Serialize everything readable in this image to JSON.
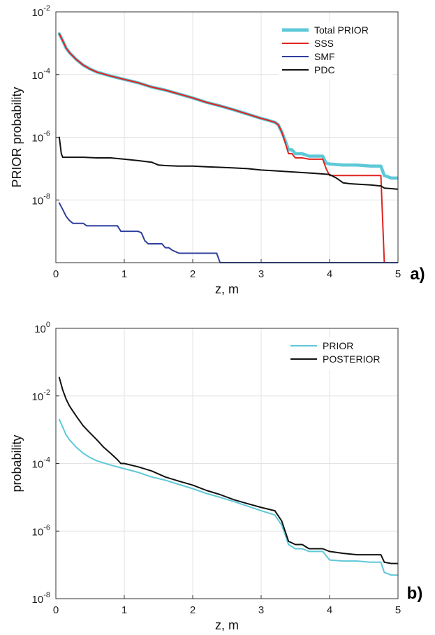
{
  "chart_data": [
    {
      "type": "line",
      "panel_label": "a)",
      "xlabel": "z, m",
      "ylabel": "PRIOR probability",
      "xlim": [
        0,
        5
      ],
      "ylim": [
        1e-10,
        0.01
      ],
      "y_scale": "log",
      "x_ticks": [
        "0",
        "1",
        "2",
        "3",
        "4",
        "5"
      ],
      "y_ticks": [
        {
          "value": 0.01,
          "base": "10",
          "exp": "-2"
        },
        {
          "value": 0.0001,
          "base": "10",
          "exp": "-4"
        },
        {
          "value": 1e-06,
          "base": "10",
          "exp": "-6"
        },
        {
          "value": 1e-08,
          "base": "10",
          "exp": "-8"
        }
      ],
      "grid": true,
      "legend_position": "top-right",
      "series": [
        {
          "name": "Total PRIOR",
          "color": "#5ec8d8",
          "style": "thick",
          "x": [
            0.05,
            0.1,
            0.15,
            0.2,
            0.3,
            0.4,
            0.5,
            0.6,
            0.8,
            1.0,
            1.2,
            1.4,
            1.6,
            1.8,
            2.0,
            2.2,
            2.4,
            2.6,
            2.8,
            3.0,
            3.1,
            3.2,
            3.25,
            3.3,
            3.35,
            3.4,
            3.45,
            3.5,
            3.6,
            3.7,
            3.8,
            3.9,
            3.95,
            4.0,
            4.2,
            4.4,
            4.6,
            4.75,
            4.8,
            4.85,
            4.9,
            5.0
          ],
          "y": [
            0.002,
            0.0012,
            0.0007,
            0.0005,
            0.0003,
            0.0002,
            0.00015,
            0.00012,
            9e-05,
            7e-05,
            5.5e-05,
            4e-05,
            3.2e-05,
            2.4e-05,
            1.8e-05,
            1.3e-05,
            1e-05,
            7.5e-06,
            5.5e-06,
            4e-06,
            3.5e-06,
            3e-06,
            2.5e-06,
            1.5e-06,
            8e-07,
            4e-07,
            4e-07,
            3e-07,
            3e-07,
            2.5e-07,
            2.5e-07,
            2.5e-07,
            1.5e-07,
            1.4e-07,
            1.3e-07,
            1.3e-07,
            1.2e-07,
            1.2e-07,
            6e-08,
            5.5e-08,
            5e-08,
            5e-08
          ]
        },
        {
          "name": "SSS",
          "color": "#e0231e",
          "style": "normal",
          "x": [
            0.05,
            0.1,
            0.15,
            0.2,
            0.3,
            0.4,
            0.5,
            0.6,
            0.8,
            1.0,
            1.2,
            1.4,
            1.6,
            1.8,
            2.0,
            2.2,
            2.4,
            2.6,
            2.8,
            3.0,
            3.1,
            3.2,
            3.25,
            3.3,
            3.35,
            3.4,
            3.45,
            3.5,
            3.6,
            3.7,
            3.8,
            3.9,
            3.95,
            4.0,
            4.2,
            4.4,
            4.6,
            4.75,
            4.8
          ],
          "y": [
            0.002,
            0.0012,
            0.0007,
            0.0005,
            0.0003,
            0.0002,
            0.00015,
            0.00012,
            9e-05,
            7e-05,
            5.5e-05,
            4e-05,
            3.2e-05,
            2.4e-05,
            1.8e-05,
            1.3e-05,
            1e-05,
            7.5e-06,
            5.5e-06,
            4e-06,
            3.5e-06,
            3e-06,
            2.5e-06,
            1.5e-06,
            7e-07,
            3e-07,
            3e-07,
            2.2e-07,
            2.2e-07,
            2e-07,
            2e-07,
            2e-07,
            1e-07,
            6e-08,
            6e-08,
            6e-08,
            6e-08,
            6e-08,
            1e-10
          ]
        },
        {
          "name": "SMF",
          "color": "#2f3f9e",
          "style": "normal",
          "x": [
            0.05,
            0.1,
            0.15,
            0.2,
            0.25,
            0.3,
            0.4,
            0.45,
            0.5,
            0.9,
            0.95,
            1.2,
            1.25,
            1.3,
            1.35,
            1.55,
            1.6,
            1.65,
            1.7,
            1.8,
            2.0,
            2.35,
            2.4,
            2.6,
            2.8,
            3.0,
            5.0
          ],
          "y": [
            8e-09,
            5e-09,
            3e-09,
            2.2e-09,
            1.8e-09,
            1.8e-09,
            1.8e-09,
            1.5e-09,
            1.5e-09,
            1.5e-09,
            1e-09,
            1e-09,
            9e-10,
            5e-10,
            4e-10,
            4e-10,
            3e-10,
            3e-10,
            2.5e-10,
            2e-10,
            2e-10,
            2e-10,
            1e-10,
            1e-10,
            1e-10,
            1e-10,
            1e-10
          ]
        },
        {
          "name": "PDC",
          "color": "#111111",
          "style": "normal",
          "x": [
            0.05,
            0.08,
            0.1,
            0.2,
            0.4,
            0.6,
            0.8,
            1.0,
            1.2,
            1.4,
            1.5,
            1.6,
            1.8,
            2.0,
            2.2,
            2.4,
            2.6,
            2.8,
            3.0,
            3.2,
            3.4,
            3.6,
            3.8,
            4.0,
            4.1,
            4.2,
            4.3,
            4.4,
            4.6,
            4.75,
            4.8,
            4.9,
            5.0
          ],
          "y": [
            1e-06,
            3e-07,
            2.3e-07,
            2.3e-07,
            2.3e-07,
            2.2e-07,
            2.2e-07,
            2e-07,
            1.8e-07,
            1.6e-07,
            1.3e-07,
            1.25e-07,
            1.2e-07,
            1.2e-07,
            1.15e-07,
            1.1e-07,
            1.05e-07,
            1e-07,
            9e-08,
            8.5e-08,
            8e-08,
            7.5e-08,
            7e-08,
            6.5e-08,
            5e-08,
            3.5e-08,
            3.3e-08,
            3.2e-08,
            3e-08,
            2.8e-08,
            2.4e-08,
            2.3e-08,
            2.2e-08
          ]
        }
      ]
    },
    {
      "type": "line",
      "panel_label": "b)",
      "xlabel": "z, m",
      "ylabel": "probability",
      "xlim": [
        0,
        5
      ],
      "ylim": [
        1e-08,
        1
      ],
      "y_scale": "log",
      "x_ticks": [
        "0",
        "1",
        "2",
        "3",
        "4",
        "5"
      ],
      "y_ticks": [
        {
          "value": 1,
          "base": "10",
          "exp": "0"
        },
        {
          "value": 0.01,
          "base": "10",
          "exp": "-2"
        },
        {
          "value": 0.0001,
          "base": "10",
          "exp": "-4"
        },
        {
          "value": 1e-06,
          "base": "10",
          "exp": "-6"
        },
        {
          "value": 1e-08,
          "base": "10",
          "exp": "-8"
        }
      ],
      "grid": true,
      "legend_position": "top-right",
      "series": [
        {
          "name": "PRIOR",
          "color": "#5ec8d8",
          "style": "normal",
          "x": [
            0.05,
            0.1,
            0.15,
            0.2,
            0.3,
            0.4,
            0.5,
            0.6,
            0.8,
            1.0,
            1.2,
            1.4,
            1.6,
            1.8,
            2.0,
            2.2,
            2.4,
            2.6,
            2.8,
            3.0,
            3.2,
            3.3,
            3.35,
            3.4,
            3.5,
            3.6,
            3.7,
            3.9,
            4.0,
            4.2,
            4.4,
            4.6,
            4.75,
            4.8,
            4.9,
            5.0
          ],
          "y": [
            0.002,
            0.0012,
            0.0007,
            0.0005,
            0.0003,
            0.0002,
            0.00015,
            0.00012,
            9e-05,
            7e-05,
            5.5e-05,
            4e-05,
            3.2e-05,
            2.4e-05,
            1.8e-05,
            1.3e-05,
            1e-05,
            7.5e-06,
            5.5e-06,
            4e-06,
            3e-06,
            1.5e-06,
            8e-07,
            4e-07,
            3e-07,
            3e-07,
            2.5e-07,
            2.5e-07,
            1.4e-07,
            1.3e-07,
            1.3e-07,
            1.2e-07,
            1.2e-07,
            6e-08,
            5e-08,
            5e-08
          ]
        },
        {
          "name": "POSTERIOR",
          "color": "#111111",
          "style": "normal",
          "x": [
            0.05,
            0.1,
            0.15,
            0.2,
            0.3,
            0.4,
            0.5,
            0.6,
            0.7,
            0.8,
            0.9,
            0.95,
            1.0,
            1.2,
            1.4,
            1.6,
            1.8,
            2.0,
            2.2,
            2.4,
            2.6,
            2.8,
            3.0,
            3.2,
            3.3,
            3.35,
            3.4,
            3.5,
            3.6,
            3.7,
            3.9,
            4.0,
            4.2,
            4.4,
            4.6,
            4.75,
            4.8,
            4.9,
            5.0
          ],
          "y": [
            0.035,
            0.015,
            0.008,
            0.005,
            0.0025,
            0.0013,
            0.0008,
            0.0005,
            0.0003,
            0.0002,
            0.00013,
            0.0001,
            0.0001,
            8e-05,
            6e-05,
            4e-05,
            3e-05,
            2.3e-05,
            1.6e-05,
            1.2e-05,
            8.5e-06,
            6.5e-06,
            5e-06,
            4e-06,
            2e-06,
            1e-06,
            5e-07,
            4e-07,
            4e-07,
            3e-07,
            3e-07,
            2.5e-07,
            2.2e-07,
            2e-07,
            2e-07,
            2e-07,
            1.2e-07,
            1.1e-07,
            1.1e-07
          ]
        }
      ]
    }
  ]
}
